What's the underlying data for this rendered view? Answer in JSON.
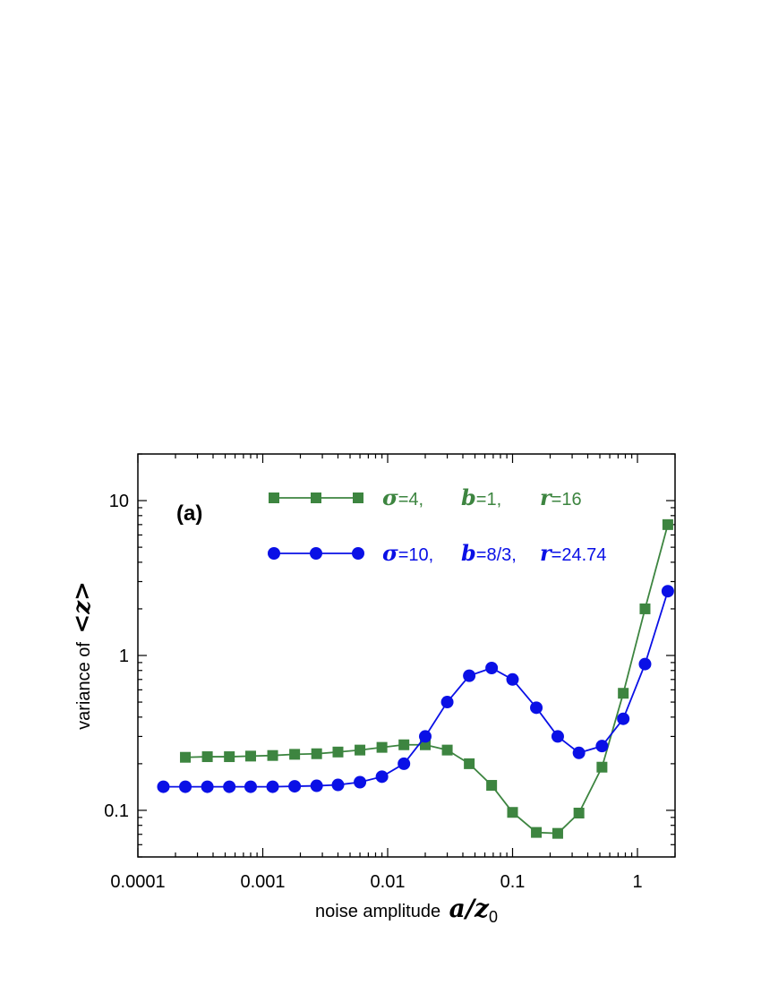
{
  "chart_data": {
    "type": "line",
    "panel_label": "(a)",
    "xscale": "log",
    "yscale": "log",
    "xlim": [
      0.0001,
      2
    ],
    "ylim": [
      0.05,
      20
    ],
    "xlabel_text": "noise amplitude",
    "xlabel_math": "a/z",
    "xlabel_sub": "0",
    "ylabel_text": "variance of",
    "ylabel_math": "<z>",
    "x_ticks": [
      {
        "value": 0.0001,
        "label": "0.0001"
      },
      {
        "value": 0.001,
        "label": "0.001"
      },
      {
        "value": 0.01,
        "label": "0.01"
      },
      {
        "value": 0.1,
        "label": "0.1"
      },
      {
        "value": 1,
        "label": "1"
      }
    ],
    "y_ticks": [
      {
        "value": 0.1,
        "label": "0.1"
      },
      {
        "value": 1,
        "label": "1"
      },
      {
        "value": 10,
        "label": "10"
      }
    ],
    "series": [
      {
        "name": "sigma=4, b=1, r=16",
        "color": "#3d8540",
        "marker": "square",
        "legend": {
          "sym1": "σ",
          "eq1": "=4,",
          "sym2": "b",
          "eq2": "=1,",
          "sym3": "r",
          "eq3": "=16"
        },
        "x": [
          0.00024,
          0.00036,
          0.00054,
          0.0008,
          0.0012,
          0.0018,
          0.0027,
          0.004,
          0.006,
          0.009,
          0.0135,
          0.02,
          0.03,
          0.045,
          0.068,
          0.1,
          0.155,
          0.23,
          0.34,
          0.52,
          0.77,
          1.15,
          1.75
        ],
        "y": [
          0.22,
          0.222,
          0.222,
          0.224,
          0.226,
          0.23,
          0.232,
          0.238,
          0.245,
          0.255,
          0.265,
          0.265,
          0.245,
          0.2,
          0.145,
          0.097,
          0.072,
          0.071,
          0.096,
          0.19,
          0.57,
          2.0,
          7.0
        ]
      },
      {
        "name": "sigma=10, b=8/3, r=24.74",
        "color": "#0a10e6",
        "marker": "circle",
        "legend": {
          "sym1": "σ",
          "eq1": "=10,",
          "sym2": "b",
          "eq2": "=8/3,",
          "sym3": "r",
          "eq3": "=24.74"
        },
        "x": [
          0.00016,
          0.00024,
          0.00036,
          0.00054,
          0.0008,
          0.0012,
          0.0018,
          0.0027,
          0.004,
          0.006,
          0.009,
          0.0135,
          0.02,
          0.03,
          0.045,
          0.068,
          0.1,
          0.155,
          0.23,
          0.34,
          0.52,
          0.77,
          1.15,
          1.75
        ],
        "y": [
          0.142,
          0.142,
          0.142,
          0.142,
          0.142,
          0.142,
          0.143,
          0.144,
          0.146,
          0.152,
          0.165,
          0.2,
          0.3,
          0.5,
          0.74,
          0.83,
          0.7,
          0.46,
          0.3,
          0.235,
          0.26,
          0.39,
          0.88,
          2.6
        ]
      }
    ]
  }
}
